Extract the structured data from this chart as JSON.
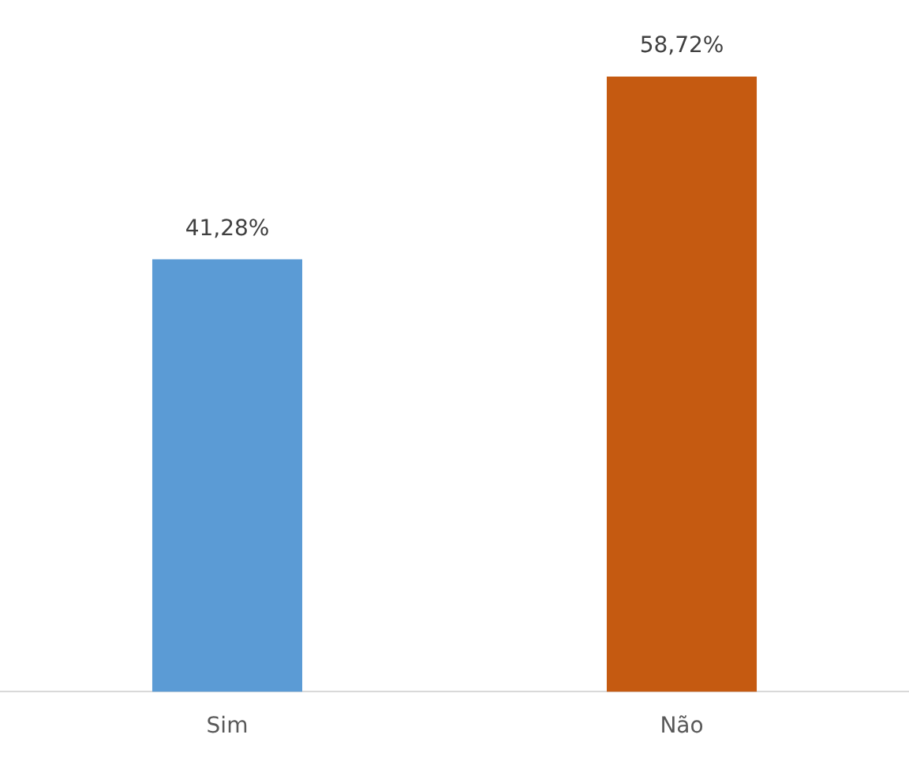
{
  "chart_data": {
    "type": "bar",
    "categories": [
      "Sim",
      "Não"
    ],
    "values": [
      41.28,
      58.72
    ],
    "colors": [
      "#5b9bd5",
      "#c55a11"
    ],
    "value_labels": [
      "41,28%",
      "58,72%"
    ],
    "grid": false,
    "legend": false
  }
}
